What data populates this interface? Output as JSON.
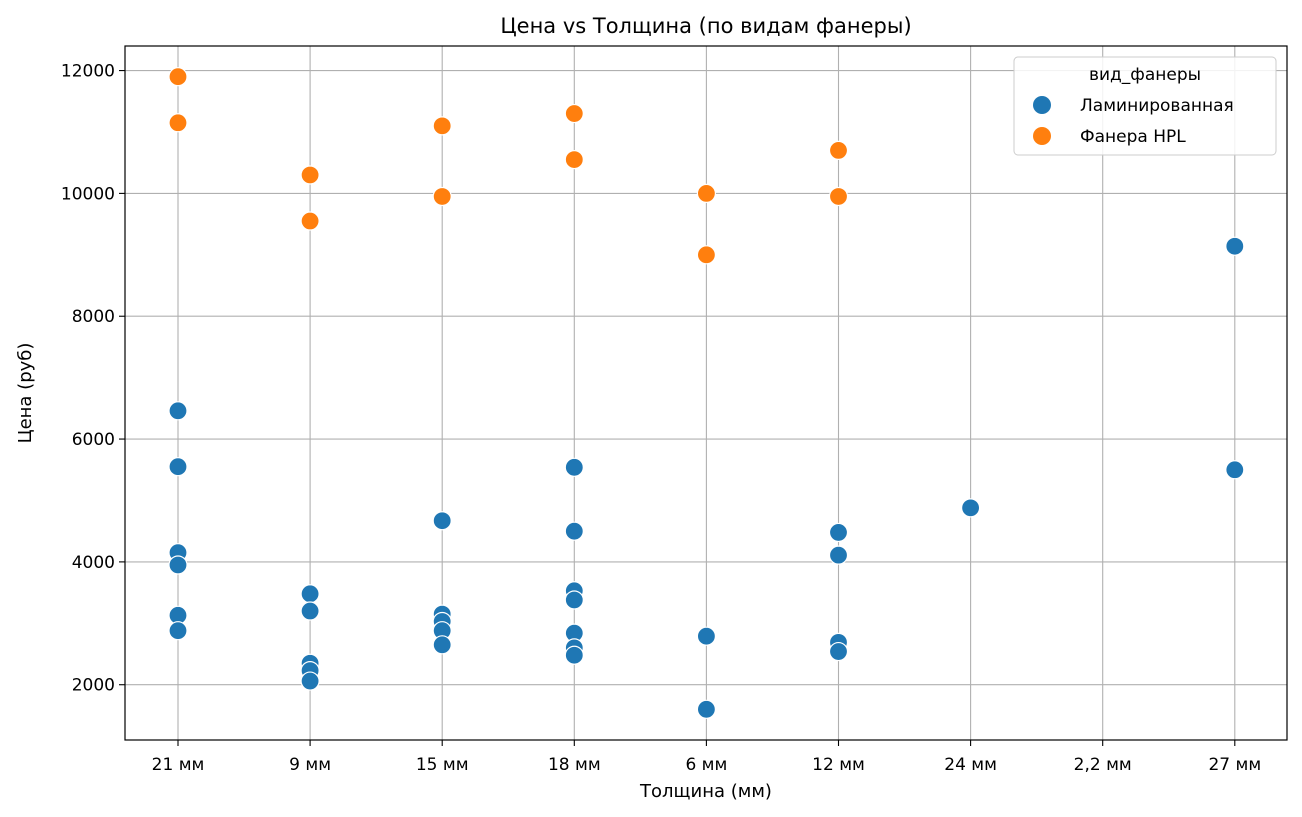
{
  "chart_data": {
    "type": "scatter",
    "title": "Цена vs Толщина (по видам фанеры)",
    "xlabel": "Толщина (мм)",
    "ylabel": "Цена (руб)",
    "categories": [
      "21 мм",
      "9 мм",
      "15 мм",
      "18 мм",
      "6 мм",
      "12 мм",
      "24 мм",
      "2,2 мм",
      "27 мм"
    ],
    "ylim": [
      1100,
      12400
    ],
    "yticks": [
      2000,
      4000,
      6000,
      8000,
      10000,
      12000
    ],
    "grid": true,
    "legend": {
      "title": "вид_фанеры",
      "placement": "top-right"
    },
    "series": [
      {
        "name": "Ламинированная",
        "color": "#1f77b4",
        "points": [
          {
            "x": "21 мм",
            "y": 6460
          },
          {
            "x": "21 мм",
            "y": 5550
          },
          {
            "x": "21 мм",
            "y": 4150
          },
          {
            "x": "21 мм",
            "y": 3950
          },
          {
            "x": "21 мм",
            "y": 3130
          },
          {
            "x": "21 мм",
            "y": 2880
          },
          {
            "x": "9 мм",
            "y": 3480
          },
          {
            "x": "9 мм",
            "y": 3200
          },
          {
            "x": "9 мм",
            "y": 2350
          },
          {
            "x": "9 мм",
            "y": 2230
          },
          {
            "x": "9 мм",
            "y": 2060
          },
          {
            "x": "15 мм",
            "y": 4670
          },
          {
            "x": "15 мм",
            "y": 3150
          },
          {
            "x": "15 мм",
            "y": 3030
          },
          {
            "x": "15 мм",
            "y": 2880
          },
          {
            "x": "15 мм",
            "y": 2650
          },
          {
            "x": "18 мм",
            "y": 5540
          },
          {
            "x": "18 мм",
            "y": 4500
          },
          {
            "x": "18 мм",
            "y": 3530
          },
          {
            "x": "18 мм",
            "y": 3380
          },
          {
            "x": "18 мм",
            "y": 2840
          },
          {
            "x": "18 мм",
            "y": 2600
          },
          {
            "x": "18 мм",
            "y": 2480
          },
          {
            "x": "6 мм",
            "y": 2790
          },
          {
            "x": "6 мм",
            "y": 1600
          },
          {
            "x": "12 мм",
            "y": 4480
          },
          {
            "x": "12 мм",
            "y": 4110
          },
          {
            "x": "12 мм",
            "y": 2690
          },
          {
            "x": "12 мм",
            "y": 2540
          },
          {
            "x": "24 мм",
            "y": 4880
          },
          {
            "x": "27 мм",
            "y": 9140
          },
          {
            "x": "27 мм",
            "y": 5500
          }
        ]
      },
      {
        "name": "Фанера HPL",
        "color": "#ff7f0e",
        "points": [
          {
            "x": "21 мм",
            "y": 11900
          },
          {
            "x": "21 мм",
            "y": 11150
          },
          {
            "x": "9 мм",
            "y": 10300
          },
          {
            "x": "9 мм",
            "y": 9550
          },
          {
            "x": "15 мм",
            "y": 11100
          },
          {
            "x": "15 мм",
            "y": 9950
          },
          {
            "x": "18 мм",
            "y": 11300
          },
          {
            "x": "18 мм",
            "y": 10550
          },
          {
            "x": "6 мм",
            "y": 10000
          },
          {
            "x": "6 мм",
            "y": 9000
          },
          {
            "x": "12 мм",
            "y": 10700
          },
          {
            "x": "12 мм",
            "y": 9950
          }
        ]
      }
    ]
  }
}
